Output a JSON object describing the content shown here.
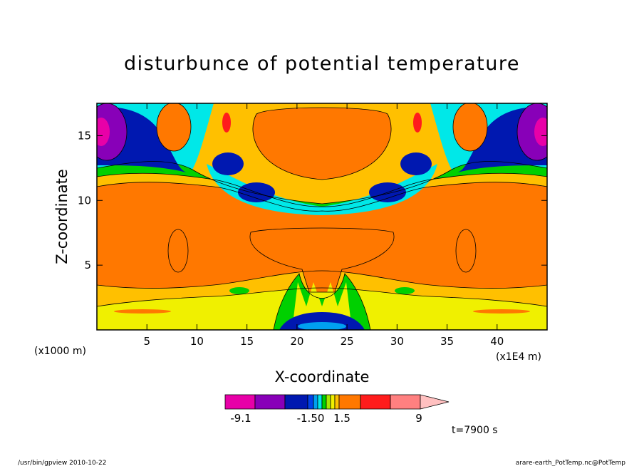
{
  "chart_data": {
    "type": "heatmap",
    "title": "disturbunce of potential temperature",
    "xlabel": "X-coordinate",
    "ylabel": "Z-coordinate",
    "x_unit_left": "(x1000 m)",
    "x_unit_right": "(x1E4 m)",
    "xlim": [
      0,
      45
    ],
    "ylim": [
      0,
      17.5
    ],
    "xticks": [
      5,
      10,
      15,
      20,
      25,
      30,
      35,
      40
    ],
    "yticks": [
      5,
      10,
      15
    ],
    "colorbar": {
      "tick_labels": [
        "-9.1",
        "-1.50",
        "1.5",
        "9"
      ],
      "tick_values": [
        -9.1,
        -1.5,
        1.5,
        9
      ],
      "colors": [
        "#e800a8",
        "#8800b8",
        "#0018b0",
        "#0040e8",
        "#00a0f0",
        "#00e8e8",
        "#00d000",
        "#a8e800",
        "#f0f000",
        "#ffc000",
        "#ff7800",
        "#ff1c1c",
        "#ff8080"
      ],
      "extend_color": "#ffc0c0"
    },
    "time_label": "t=7900 s"
  },
  "footer": {
    "left": "/usr/bin/gpview   2010-10-22",
    "right": "arare-earth_PotTemp.nc@PotTemp"
  }
}
